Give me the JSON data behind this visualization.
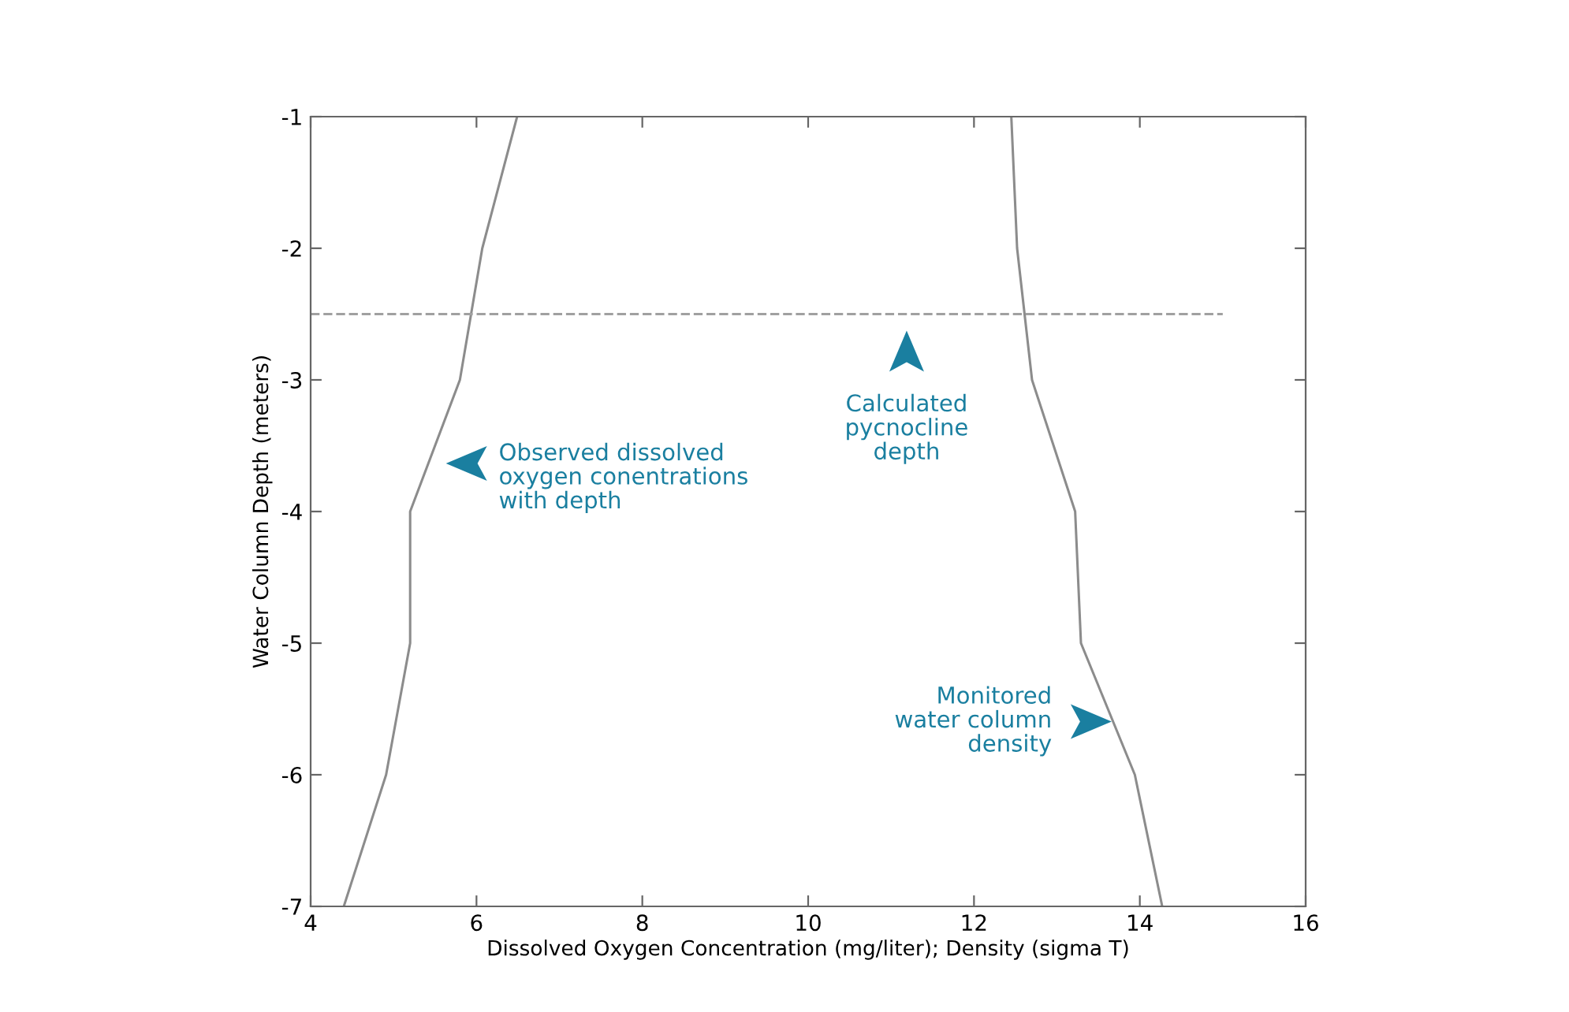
{
  "chart_data": {
    "type": "line",
    "xlabel": "Dissolved Oxygen Concentration (mg/liter); Density (sigma T)",
    "ylabel": "Water Column Depth (meters)",
    "xlim": [
      4,
      16
    ],
    "xticks": [
      4,
      6,
      8,
      10,
      12,
      14,
      16
    ],
    "ylim": [
      -7,
      -1
    ],
    "yticks": [
      -7,
      -6,
      -5,
      -4,
      -3,
      -2,
      -1
    ],
    "grid": false,
    "marker": "none",
    "series": [
      {
        "color": "#8c8c8c",
        "x": [
          6.49,
          6.07,
          5.8,
          5.2,
          5.2,
          4.91,
          4.4
        ],
        "values": [
          -1,
          -2,
          -3,
          -4,
          -5,
          -6,
          -7
        ],
        "line_style": "solid"
      },
      {
        "color": "#8c8c8c",
        "x": [
          12.45,
          12.52,
          12.7,
          13.22,
          13.29,
          13.94,
          14.27
        ],
        "values": [
          -1,
          -2,
          -3,
          -4,
          -5,
          -6,
          -7
        ],
        "line_style": "solid"
      },
      {
        "color": "#a0a0a0",
        "x": [
          4,
          15.0
        ],
        "values": [
          -2.5,
          -2.5
        ],
        "line_style": "dashed"
      }
    ],
    "annotations": [
      "Observed dissolved\noxygen conentrations\nwith depth",
      "Calculated\npycnocline\ndepth",
      "Monitored\nwater column\ndensity"
    ]
  }
}
